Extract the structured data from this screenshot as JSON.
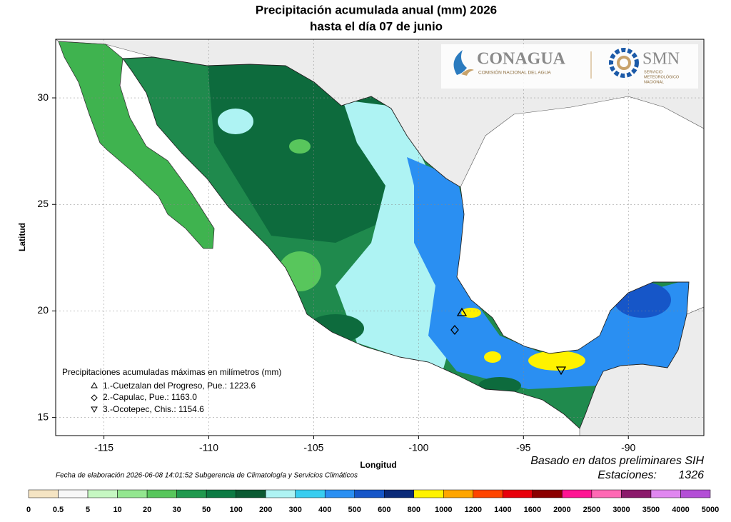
{
  "title": [
    "Precipitación acumulada anual (mm) 2026",
    "hasta el día 07 de junio"
  ],
  "logos": {
    "conagua": "CONAGUA",
    "conagua_sub": "COMISIÓN NACIONAL DEL AGUA",
    "smn": "SMN",
    "smn_sub": [
      "SERVICIO",
      "METEOROLÓGICO",
      "NACIONAL"
    ]
  },
  "map": {
    "xlim": [
      -117.3,
      -86.4
    ],
    "ylim": [
      14.15,
      32.75
    ],
    "xticks": [
      -115,
      -110,
      -105,
      -100,
      -95,
      -90
    ],
    "yticks": [
      15,
      20,
      25,
      30
    ],
    "xlabel": "Longitud",
    "ylabel": "Latitud",
    "grid": true
  },
  "stations": {
    "title": "Precipitaciones acumuladas máximas en milímetros (mm)",
    "entries": [
      "1.-Cuetzalan del Progreso, Pue.: 1223.6",
      "2.-Capulac, Pue.: 1163.0",
      "3.-Ocotepec, Chis.: 1154.6"
    ]
  },
  "notes": {
    "date": "Fecha de elaboración 2026-06-08 14:01:52 Subgerencia de Climatología y Servicios Climáticos",
    "source": "Basado en datos preliminares SIH",
    "stations_label": "Estaciones:",
    "stations_count": 1326
  },
  "colorbar": {
    "labels": [
      0,
      0.5,
      5,
      10,
      20,
      30,
      50,
      100,
      200,
      300,
      400,
      500,
      600,
      800,
      1000,
      1200,
      1400,
      1600,
      2000,
      2500,
      3000,
      3500,
      4000,
      5000
    ],
    "colors": [
      "#f5e4c3",
      "#f7f7f7",
      "#c6f7c2",
      "#93e68f",
      "#58c65c",
      "#21994f",
      "#0d7a44",
      "#0b5a33",
      "#aef3f3",
      "#38cdf0",
      "#2a8ff2",
      "#1656c8",
      "#0b2a78",
      "#fff200",
      "#ffa500",
      "#ff4500",
      "#e8000b",
      "#8b0000",
      "#ff1493",
      "#ff69b4",
      "#8b1a6b",
      "#e087f0",
      "#b34fd6",
      "#7a2a9e"
    ]
  }
}
